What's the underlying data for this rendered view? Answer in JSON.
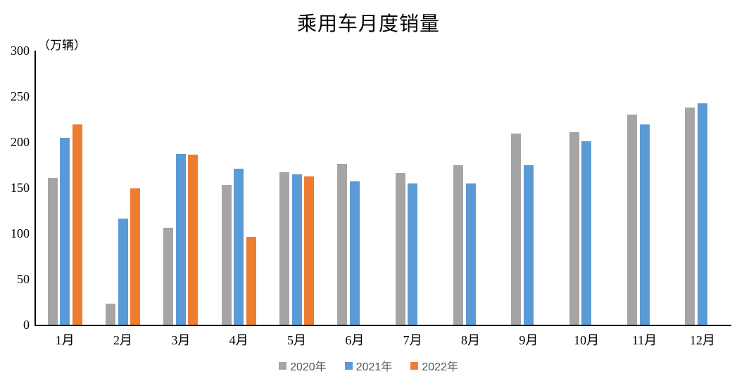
{
  "chart_data": {
    "type": "bar",
    "title": "乘用车月度销量",
    "unit_label": "（万辆）",
    "xlabel": "",
    "ylabel": "万辆",
    "ylim": [
      0,
      300
    ],
    "yticks": [
      0,
      50,
      100,
      150,
      200,
      250,
      300
    ],
    "grid": false,
    "legend_position": "bottom",
    "background_color": "#FFFFFF",
    "axis_color": "#000000",
    "legend_text_color": "#595959",
    "categories": [
      "1月",
      "2月",
      "3月",
      "4月",
      "5月",
      "6月",
      "7月",
      "8月",
      "9月",
      "10月",
      "11月",
      "12月"
    ],
    "series": [
      {
        "name": "2020年",
        "color": "#A5A5A5",
        "values": [
          161,
          23,
          106,
          153,
          167,
          176,
          166,
          175,
          209,
          211,
          230,
          238
        ]
      },
      {
        "name": "2021年",
        "color": "#5B9BD5",
        "values": [
          205,
          116,
          187,
          171,
          165,
          157,
          155,
          155,
          175,
          201,
          219,
          242
        ]
      },
      {
        "name": "2022年",
        "color": "#ED7D31",
        "values": [
          219,
          149,
          186,
          96,
          162,
          null,
          null,
          null,
          null,
          null,
          null,
          null
        ]
      }
    ]
  }
}
